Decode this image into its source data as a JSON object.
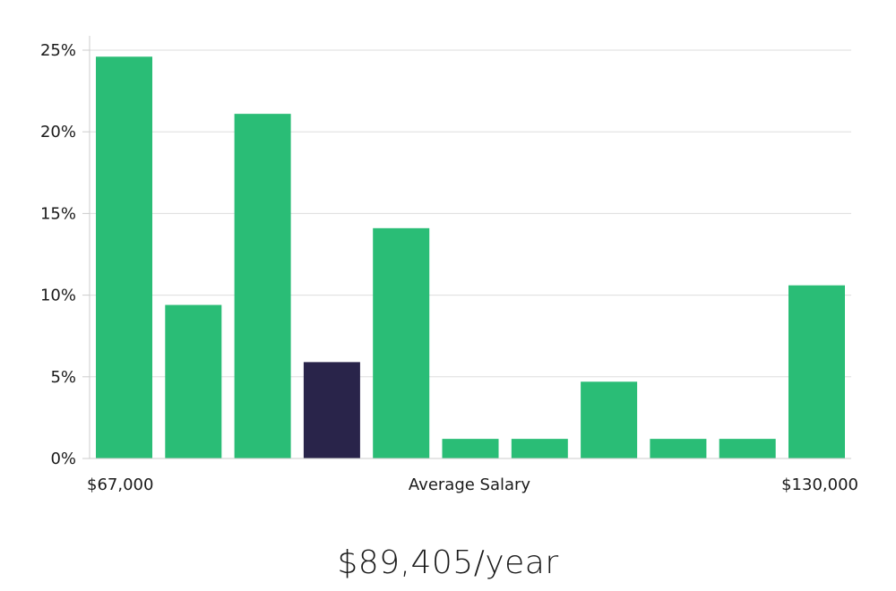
{
  "chart_data": {
    "type": "bar",
    "values": [
      24.6,
      9.4,
      21.1,
      5.9,
      14.1,
      1.2,
      1.2,
      4.7,
      1.2,
      1.2,
      10.6
    ],
    "highlight_index": 3,
    "ylim": [
      0,
      25
    ],
    "yticks": [
      "0%",
      "5%",
      "10%",
      "15%",
      "20%",
      "25%"
    ],
    "ytick_values": [
      0,
      5,
      10,
      15,
      20,
      25
    ],
    "x_min_label": "$67,000",
    "xlabel": "Average Salary",
    "x_max_label": "$130,000",
    "grid": true,
    "colors": {
      "bar": "#2abd76",
      "highlight": "#29244a",
      "grid": "#dddddd",
      "axis": "#cccccc"
    }
  },
  "summary": {
    "salary_text": "$89,405/year"
  }
}
